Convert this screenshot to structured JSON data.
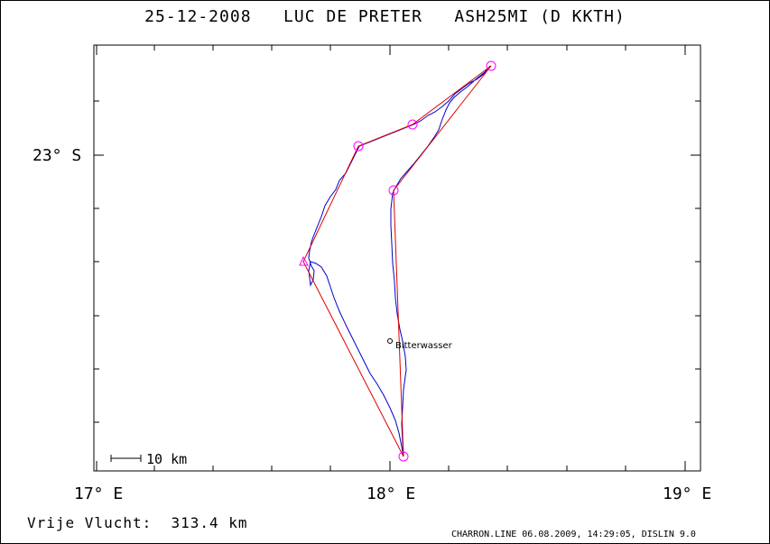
{
  "page": {
    "title": "25-12-2008   LUC DE PRETER   ASH25MI (D KKTH)",
    "free_flight": "Vrije Vlucht:  313.4 km",
    "footer": "CHARRON.LINE 06.08.2009, 14:29:05, DISLIN 9.0"
  },
  "map": {
    "x_ticks": [
      "17° E",
      "18° E",
      "19° E"
    ],
    "y_ticks": [
      "23° S"
    ],
    "scale_label": "10 km",
    "place_label": "Bitterwasser",
    "colors": {
      "track": "#0000cc",
      "task": "#dd0000",
      "turnpoint": "#ff00ff",
      "axes": "#000000"
    }
  }
}
